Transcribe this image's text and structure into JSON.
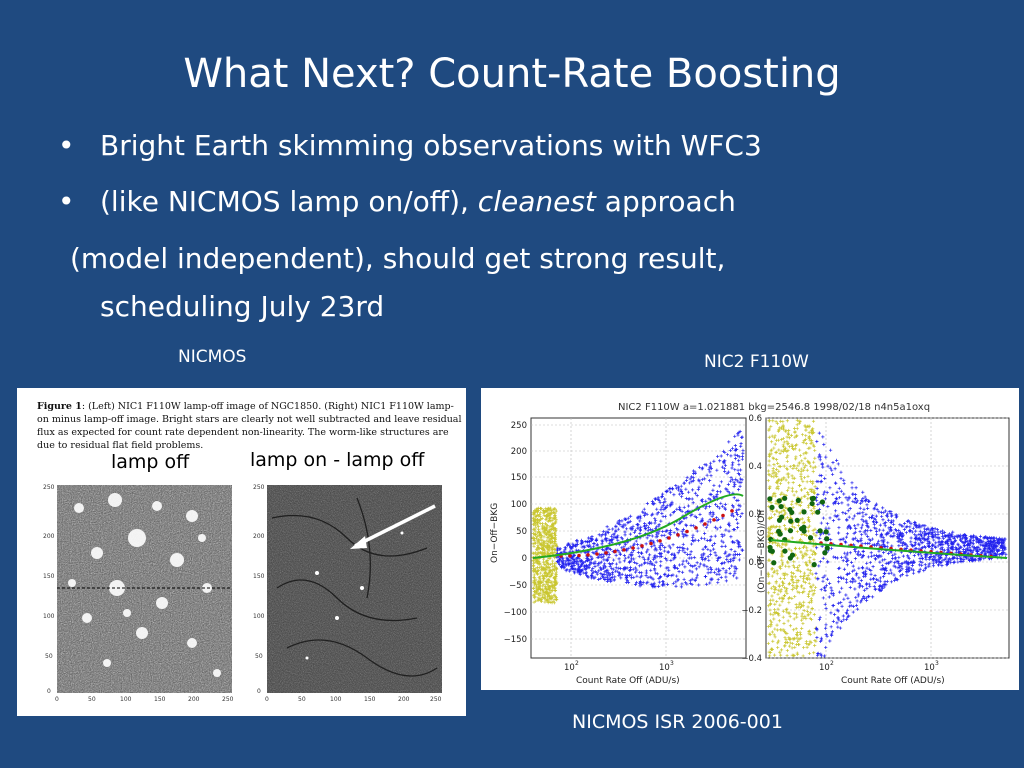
{
  "slide": {
    "title": "What Next?  Count-Rate Boosting",
    "bullets": [
      "Bright Earth skimming observations with WFC3",
      "(like NICMOS lamp on/off), "
    ],
    "bullet2_emph": "cleanest",
    "bullet2_tail": " approach",
    "continuation_1": "(model independent), should get strong result,",
    "continuation_2": "scheduling July 23rd",
    "bullet_glyph": "•"
  },
  "captions": {
    "left": "NICMOS",
    "right": "NIC2 F110W",
    "bottom": "NICMOS ISR 2006-001"
  },
  "left_figure": {
    "fig_label": "Figure 1",
    "fig_text": ": (Left) NIC1 F110W lamp-off image of NGC1850. (Right) NIC1 F110W lamp-on minus lamp-off image. Bright stars are clearly not well subtracted and leave residual flux as expected for count rate dependent non-linearity. The worm-like structures are due to residual flat field problems.",
    "label_lamp_off": "lamp off",
    "label_lamp_diff": "lamp on - lamp off",
    "image_axis_ticks": [
      "0",
      "50",
      "100",
      "150",
      "200",
      "250"
    ]
  },
  "right_figure": {
    "header": "NIC2  F110W  a=1.021881  bkg=2546.8  1998/02/18   n4n5a1oxq",
    "left_plot": {
      "ylabel": "On−Off−BKG",
      "xlabel": "Count Rate Off (ADU/s)",
      "yticks": [
        "250",
        "200",
        "150",
        "100",
        "50",
        "0",
        "−50",
        "−100",
        "−150"
      ],
      "xticks": [
        "10",
        "10"
      ],
      "xtick_exps": [
        "2",
        "3"
      ]
    },
    "right_plot": {
      "ylabel": "(On−Off−BKG)/Off",
      "xlabel": "Count Rate Off (ADU/s)",
      "yticks": [
        "0.6",
        "0.4",
        "0.2",
        "0.0",
        "−0.2",
        "−0.4"
      ],
      "xticks": [
        "10",
        "10"
      ],
      "xtick_exps": [
        "2",
        "3"
      ]
    },
    "colors": {
      "primary": "#2323ee",
      "low": "#c9c62f",
      "fit": "#22aa22",
      "binned": "#cc1111",
      "points": "#116611"
    }
  },
  "colors": {
    "background": "#1f4a80",
    "text": "#ffffff"
  }
}
